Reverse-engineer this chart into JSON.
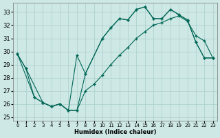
{
  "xlabel": "Humidex (Indice chaleur)",
  "bg_color": "#cde8e5",
  "grid_color": "#aacfcc",
  "line_color": "#006655",
  "xlim": [
    -0.5,
    23.5
  ],
  "ylim": [
    24.7,
    33.7
  ],
  "yticks": [
    25,
    26,
    27,
    28,
    29,
    30,
    31,
    32,
    33
  ],
  "xticks": [
    0,
    1,
    2,
    3,
    4,
    5,
    6,
    7,
    8,
    9,
    10,
    11,
    12,
    13,
    14,
    15,
    16,
    17,
    18,
    19,
    20,
    21,
    22,
    23
  ],
  "line1_x": [
    0,
    1,
    3,
    4,
    5,
    6,
    7,
    8,
    10,
    11,
    12,
    13,
    14,
    15,
    16,
    17,
    18,
    19,
    20,
    21,
    22,
    23
  ],
  "line1_y": [
    29.8,
    28.7,
    26.1,
    25.8,
    26.0,
    25.5,
    29.7,
    28.3,
    31.0,
    31.8,
    32.5,
    32.4,
    33.2,
    33.4,
    32.5,
    32.5,
    33.2,
    32.8,
    32.4,
    30.7,
    29.5,
    29.5
  ],
  "line2_x": [
    0,
    1,
    2,
    3,
    4,
    5,
    6,
    7,
    8,
    10,
    11,
    12,
    13,
    14,
    15,
    16,
    17,
    18,
    19,
    20,
    21,
    22,
    23
  ],
  "line2_y": [
    29.8,
    28.7,
    26.5,
    26.1,
    25.8,
    26.0,
    25.5,
    25.5,
    28.3,
    31.0,
    31.8,
    32.5,
    32.4,
    33.2,
    33.4,
    32.5,
    32.5,
    33.2,
    32.8,
    32.4,
    30.7,
    29.5,
    29.5
  ],
  "line3_x": [
    0,
    2,
    3,
    4,
    5,
    6,
    7,
    8,
    9,
    10,
    11,
    12,
    13,
    14,
    15,
    16,
    17,
    18,
    19,
    20,
    21,
    22,
    23
  ],
  "line3_y": [
    29.8,
    26.5,
    26.1,
    25.8,
    26.0,
    25.5,
    25.5,
    27.0,
    27.5,
    28.2,
    29.0,
    29.7,
    30.3,
    31.0,
    31.5,
    32.0,
    32.2,
    32.5,
    32.7,
    32.3,
    31.2,
    30.8,
    29.5
  ]
}
